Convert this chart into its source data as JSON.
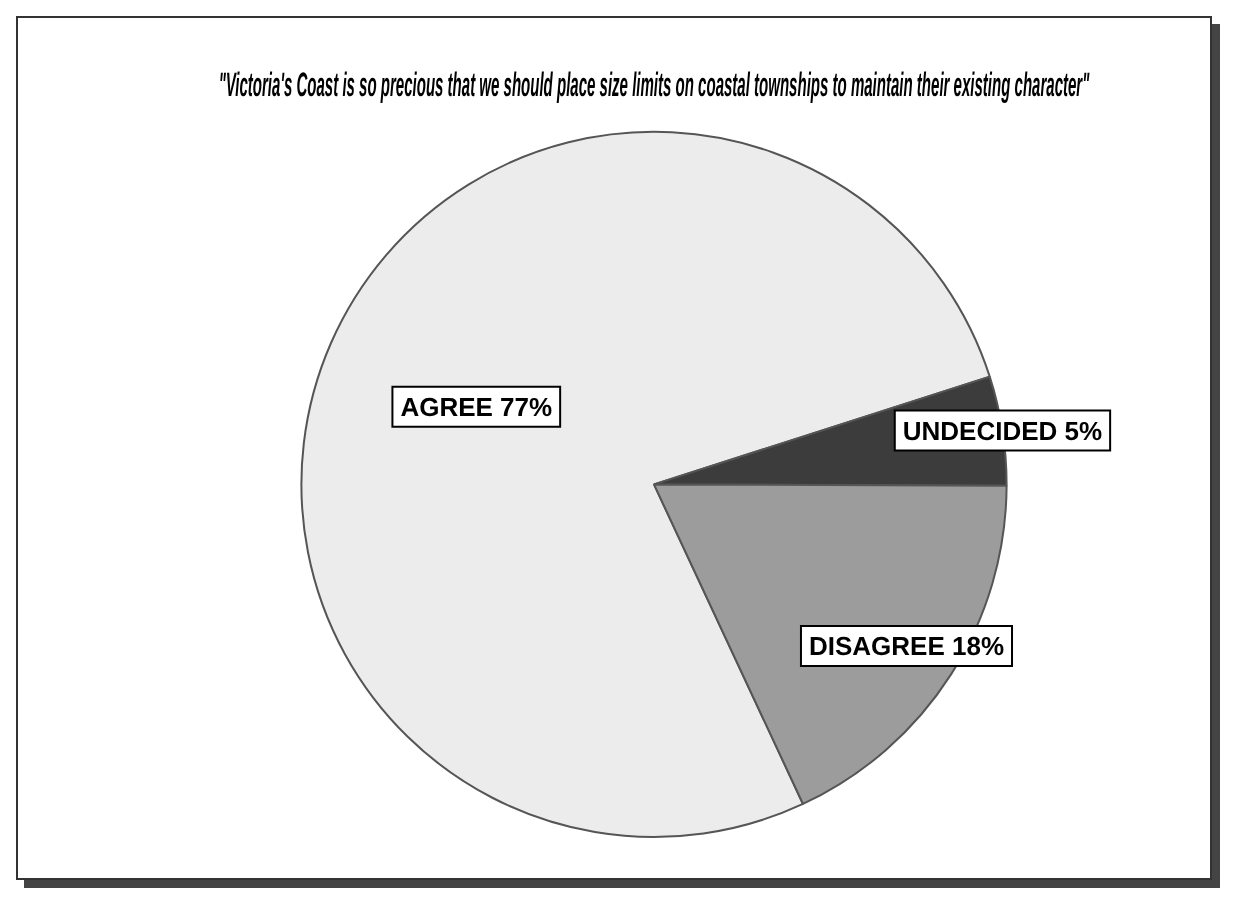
{
  "chart_data": {
    "type": "pie",
    "title": "\"Victoria's Coast is so precious that we should place size limits on coastal townships to maintain their existing character\"",
    "categories": [
      "AGREE",
      "UNDECIDED",
      "DISAGREE"
    ],
    "values": [
      77,
      5,
      18
    ],
    "colors": [
      "#ececec",
      "#3c3c3c",
      "#9c9c9c"
    ],
    "value_labels": [
      "77%",
      "5%",
      "18%"
    ],
    "legend": false
  }
}
